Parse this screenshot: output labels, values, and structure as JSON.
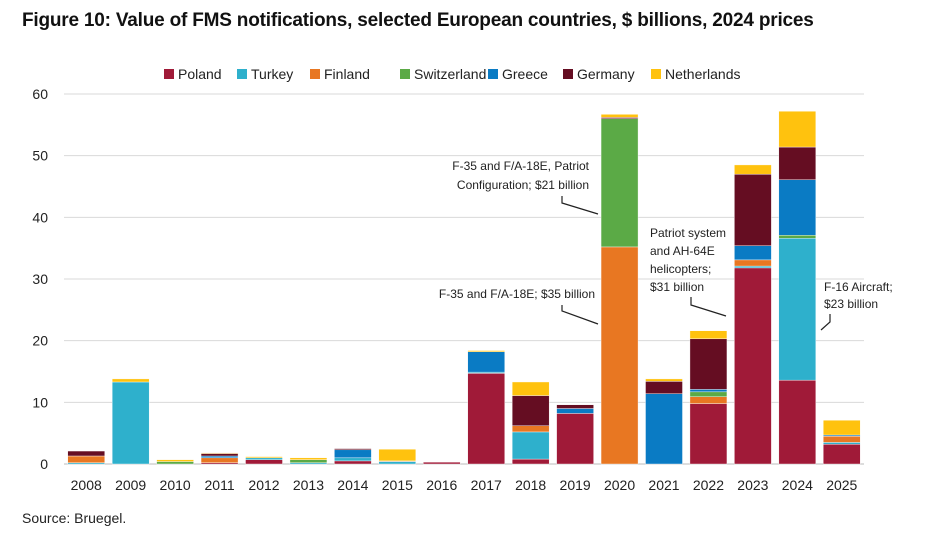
{
  "chart_data": {
    "type": "bar",
    "stacked": true,
    "title": "Figure 10: Value of FMS notifications, selected European countries, $ billions, 2024 prices",
    "source": "Source: Bruegel.",
    "xlabel": "",
    "ylabel": "",
    "ylim": [
      0,
      60
    ],
    "yticks": [
      0,
      10,
      20,
      30,
      40,
      50,
      60
    ],
    "grid": true,
    "legend_position": "top",
    "categories": [
      "2008",
      "2009",
      "2010",
      "2011",
      "2012",
      "2013",
      "2014",
      "2015",
      "2016",
      "2017",
      "2018",
      "2019",
      "2020",
      "2021",
      "2022",
      "2023",
      "2024",
      "2025"
    ],
    "series": [
      {
        "name": "Poland",
        "color": "#A01A38",
        "values": [
          0,
          0,
          0,
          0.2,
          0.7,
          0,
          0.5,
          0,
          0.3,
          14.7,
          0.8,
          8.2,
          0,
          0,
          9.8,
          31.8,
          13.6,
          3.2
        ]
      },
      {
        "name": "Turkey",
        "color": "#2EB0CC",
        "values": [
          0.2,
          13.3,
          0,
          0,
          0.3,
          0.2,
          0.5,
          0.4,
          0,
          0.2,
          4.4,
          0,
          0,
          0,
          0,
          0.3,
          23,
          0.3
        ]
      },
      {
        "name": "Finland",
        "color": "#E87722",
        "values": [
          1.1,
          0,
          0,
          0.8,
          0,
          0,
          0,
          0.1,
          0,
          0,
          1.0,
          0,
          35.2,
          0,
          1.1,
          1.0,
          0,
          1.0
        ]
      },
      {
        "name": "Switzerland",
        "color": "#5BAA46",
        "values": [
          0,
          0,
          0.4,
          0,
          0,
          0.5,
          0,
          0,
          0,
          0,
          0,
          0,
          20.8,
          0,
          0.8,
          0,
          0.5,
          0
        ]
      },
      {
        "name": "Greece",
        "color": "#0A7BC4",
        "values": [
          0,
          0,
          0,
          0.3,
          0,
          0,
          1.3,
          0,
          0,
          3.3,
          0,
          0.8,
          0,
          11.4,
          0.4,
          2.3,
          9.0,
          0.2
        ]
      },
      {
        "name": "Germany",
        "color": "#650D22",
        "values": [
          0.8,
          0,
          0,
          0.4,
          0,
          0,
          0.2,
          0,
          0,
          0,
          4.9,
          0.6,
          0.2,
          2.0,
          8.2,
          11.6,
          5.3,
          0
        ]
      },
      {
        "name": "Netherlands",
        "color": "#FFC20E",
        "values": [
          0,
          0.5,
          0.3,
          0.1,
          0.2,
          0.3,
          0,
          1.9,
          0,
          0.2,
          2.2,
          0,
          0.5,
          0.4,
          1.3,
          1.5,
          5.8,
          2.4
        ]
      }
    ],
    "annotations": [
      {
        "lines": [
          "F-35 and F/A-18E, Patriot",
          "Configuration; $21 billion"
        ]
      },
      {
        "lines": [
          "F-35 and F/A-18E; $35 billion"
        ]
      },
      {
        "lines": [
          "Patriot system",
          "and AH-64E",
          "helicopters;",
          "$31 billion"
        ]
      },
      {
        "lines": [
          "F-16 Aircraft;",
          "$23 billion"
        ]
      }
    ]
  }
}
